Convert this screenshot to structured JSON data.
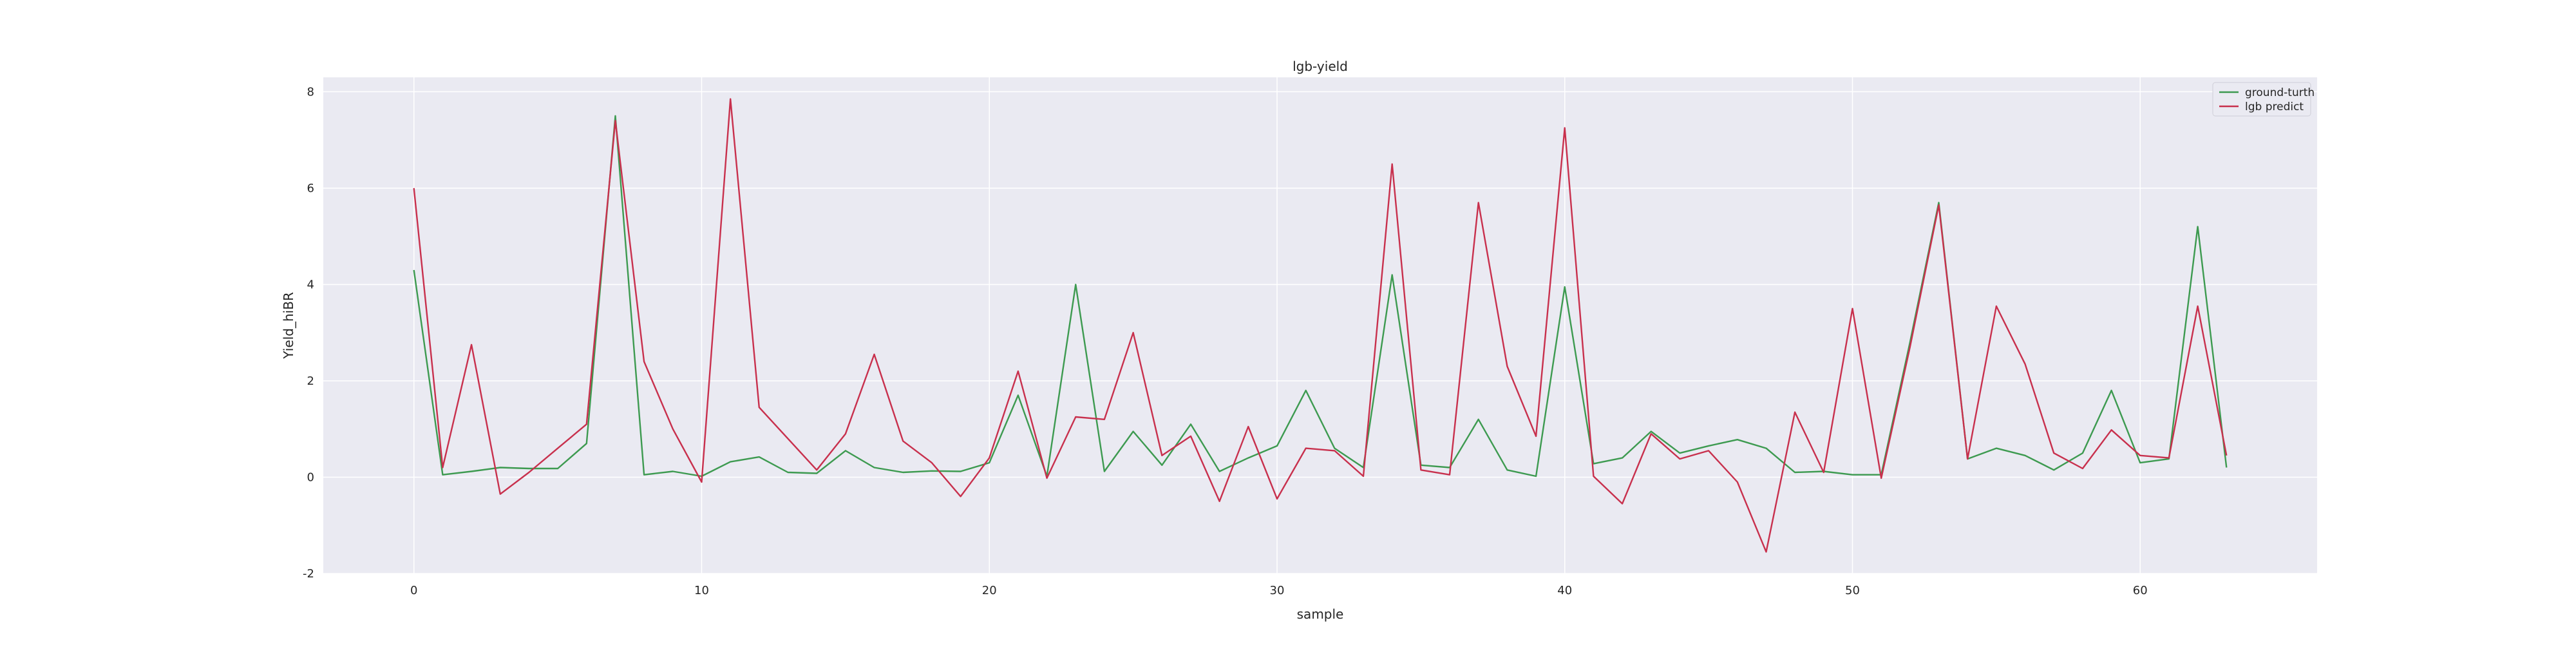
{
  "chart_data": {
    "type": "line",
    "title": "lgb-yield",
    "xlabel": "sample",
    "ylabel": "Yield_hiBR",
    "xlim": [
      -3.15,
      66.15
    ],
    "ylim": [
      -2,
      8.3
    ],
    "xticks": [
      0,
      10,
      20,
      30,
      40,
      50,
      60
    ],
    "yticks": [
      -2,
      0,
      2,
      4,
      6,
      8
    ],
    "grid": true,
    "legend_position": "top-right",
    "x": [
      0,
      1,
      2,
      3,
      4,
      5,
      6,
      7,
      8,
      9,
      10,
      11,
      12,
      13,
      14,
      15,
      16,
      17,
      18,
      19,
      20,
      21,
      22,
      23,
      24,
      25,
      26,
      27,
      28,
      29,
      30,
      31,
      32,
      33,
      34,
      35,
      36,
      37,
      38,
      39,
      40,
      41,
      42,
      43,
      44,
      45,
      46,
      47,
      48,
      49,
      50,
      51,
      52,
      53,
      54,
      55,
      56,
      57,
      58,
      59,
      60,
      61,
      62,
      63
    ],
    "series": [
      {
        "name": "ground-turth",
        "color": "#3d9a50",
        "values": [
          4.3,
          0.05,
          0.12,
          0.2,
          0.18,
          0.18,
          0.7,
          7.5,
          0.05,
          0.12,
          0.02,
          0.32,
          0.42,
          0.1,
          0.08,
          0.55,
          0.2,
          0.1,
          0.13,
          0.12,
          0.3,
          1.7,
          0.02,
          4.0,
          0.12,
          0.95,
          0.25,
          1.1,
          0.12,
          0.4,
          0.65,
          1.8,
          0.6,
          0.2,
          4.2,
          0.25,
          0.2,
          1.2,
          0.15,
          0.02,
          3.95,
          0.28,
          0.4,
          0.95,
          0.5,
          0.65,
          0.78,
          0.6,
          0.1,
          0.12,
          0.05,
          0.05,
          2.8,
          5.7,
          0.38,
          0.6,
          0.45,
          0.15,
          0.5,
          1.8,
          0.3,
          0.38,
          5.2,
          0.2
        ]
      },
      {
        "name": "lgb predict",
        "color": "#c8304d",
        "values": [
          6.0,
          0.2,
          2.75,
          -0.35,
          0.1,
          0.6,
          1.1,
          7.4,
          2.4,
          1.0,
          -0.1,
          7.85,
          1.45,
          0.8,
          0.15,
          0.9,
          2.55,
          0.75,
          0.3,
          -0.4,
          0.4,
          2.2,
          -0.02,
          1.25,
          1.2,
          3.0,
          0.45,
          0.85,
          -0.5,
          1.05,
          -0.45,
          0.6,
          0.55,
          0.02,
          6.5,
          0.15,
          0.05,
          5.7,
          2.3,
          0.85,
          7.25,
          0.02,
          -0.55,
          0.9,
          0.38,
          0.55,
          -0.1,
          -1.55,
          1.35,
          0.1,
          3.5,
          -0.02,
          2.7,
          5.65,
          0.38,
          3.55,
          2.35,
          0.5,
          0.18,
          0.98,
          0.45,
          0.4,
          3.55,
          0.45
        ]
      }
    ]
  }
}
